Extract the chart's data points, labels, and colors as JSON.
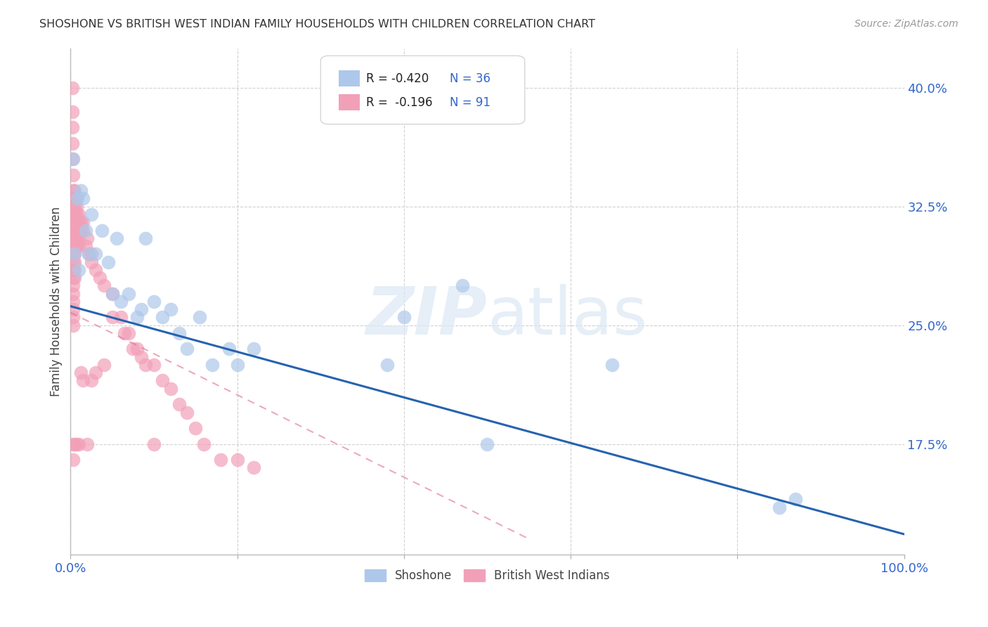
{
  "title": "SHOSHONE VS BRITISH WEST INDIAN FAMILY HOUSEHOLDS WITH CHILDREN CORRELATION CHART",
  "source": "Source: ZipAtlas.com",
  "ylabel": "Family Households with Children",
  "xlim": [
    0,
    1.0
  ],
  "ylim": [
    0.105,
    0.425
  ],
  "yticks": [
    0.175,
    0.25,
    0.325,
    0.4
  ],
  "ytick_labels": [
    "17.5%",
    "25.0%",
    "32.5%",
    "40.0%"
  ],
  "xticks": [
    0.0,
    0.2,
    0.4,
    0.6,
    0.8,
    1.0
  ],
  "xtick_labels": [
    "0.0%",
    "",
    "",
    "",
    "",
    "100.0%"
  ],
  "shoshone_color": "#adc8ea",
  "bwi_color": "#f2a0b8",
  "shoshone_edge_color": "#adc8ea",
  "bwi_edge_color": "#f2a0b8",
  "shoshone_line_color": "#2563b0",
  "bwi_line_color": "#e07090",
  "shoshone_x": [
    0.003,
    0.005,
    0.008,
    0.01,
    0.012,
    0.015,
    0.018,
    0.022,
    0.025,
    0.03,
    0.038,
    0.045,
    0.05,
    0.055,
    0.06,
    0.07,
    0.08,
    0.085,
    0.09,
    0.1,
    0.11,
    0.12,
    0.13,
    0.14,
    0.155,
    0.17,
    0.19,
    0.2,
    0.22,
    0.38,
    0.4,
    0.47,
    0.65,
    0.85,
    0.87,
    0.5
  ],
  "shoshone_y": [
    0.355,
    0.295,
    0.33,
    0.285,
    0.335,
    0.33,
    0.31,
    0.295,
    0.32,
    0.295,
    0.31,
    0.29,
    0.27,
    0.305,
    0.265,
    0.27,
    0.255,
    0.26,
    0.305,
    0.265,
    0.255,
    0.26,
    0.245,
    0.235,
    0.255,
    0.225,
    0.235,
    0.225,
    0.235,
    0.225,
    0.255,
    0.275,
    0.225,
    0.135,
    0.14,
    0.175
  ],
  "bwi_x": [
    0.002,
    0.002,
    0.002,
    0.002,
    0.002,
    0.003,
    0.003,
    0.003,
    0.003,
    0.003,
    0.003,
    0.003,
    0.003,
    0.003,
    0.003,
    0.003,
    0.003,
    0.003,
    0.003,
    0.003,
    0.003,
    0.003,
    0.003,
    0.003,
    0.003,
    0.003,
    0.005,
    0.005,
    0.005,
    0.005,
    0.005,
    0.005,
    0.005,
    0.005,
    0.005,
    0.005,
    0.005,
    0.005,
    0.005,
    0.007,
    0.007,
    0.007,
    0.007,
    0.007,
    0.007,
    0.007,
    0.007,
    0.01,
    0.01,
    0.01,
    0.01,
    0.01,
    0.01,
    0.012,
    0.012,
    0.012,
    0.015,
    0.015,
    0.015,
    0.018,
    0.02,
    0.02,
    0.022,
    0.025,
    0.025,
    0.025,
    0.03,
    0.03,
    0.035,
    0.04,
    0.04,
    0.05,
    0.05,
    0.06,
    0.065,
    0.07,
    0.075,
    0.08,
    0.085,
    0.09,
    0.1,
    0.1,
    0.11,
    0.12,
    0.13,
    0.14,
    0.15,
    0.16,
    0.18,
    0.2,
    0.22
  ],
  "bwi_y": [
    0.4,
    0.385,
    0.375,
    0.365,
    0.355,
    0.345,
    0.335,
    0.33,
    0.325,
    0.32,
    0.315,
    0.31,
    0.305,
    0.3,
    0.295,
    0.29,
    0.285,
    0.28,
    0.275,
    0.27,
    0.265,
    0.26,
    0.255,
    0.25,
    0.175,
    0.165,
    0.335,
    0.33,
    0.325,
    0.32,
    0.315,
    0.31,
    0.305,
    0.3,
    0.295,
    0.29,
    0.285,
    0.28,
    0.175,
    0.33,
    0.325,
    0.32,
    0.315,
    0.31,
    0.305,
    0.3,
    0.175,
    0.32,
    0.315,
    0.31,
    0.305,
    0.3,
    0.175,
    0.315,
    0.31,
    0.22,
    0.315,
    0.31,
    0.215,
    0.3,
    0.305,
    0.175,
    0.295,
    0.295,
    0.29,
    0.215,
    0.285,
    0.22,
    0.28,
    0.275,
    0.225,
    0.27,
    0.255,
    0.255,
    0.245,
    0.245,
    0.235,
    0.235,
    0.23,
    0.225,
    0.225,
    0.175,
    0.215,
    0.21,
    0.2,
    0.195,
    0.185,
    0.175,
    0.165,
    0.165,
    0.16
  ],
  "shoshone_trend_x0": 0.0,
  "shoshone_trend_x1": 1.0,
  "shoshone_trend_y0": 0.262,
  "shoshone_trend_y1": 0.118,
  "bwi_trend_x0": 0.0,
  "bwi_trend_x1": 0.55,
  "bwi_trend_y0": 0.258,
  "bwi_trend_y1": 0.115,
  "watermark_line1": "ZIP",
  "watermark_line2": "atlas",
  "background_color": "#ffffff",
  "grid_color": "#cccccc",
  "axis_label_color": "#3366cc",
  "title_color": "#333333",
  "legend_box_color": "#ffffff",
  "legend_border_color": "#cccccc"
}
